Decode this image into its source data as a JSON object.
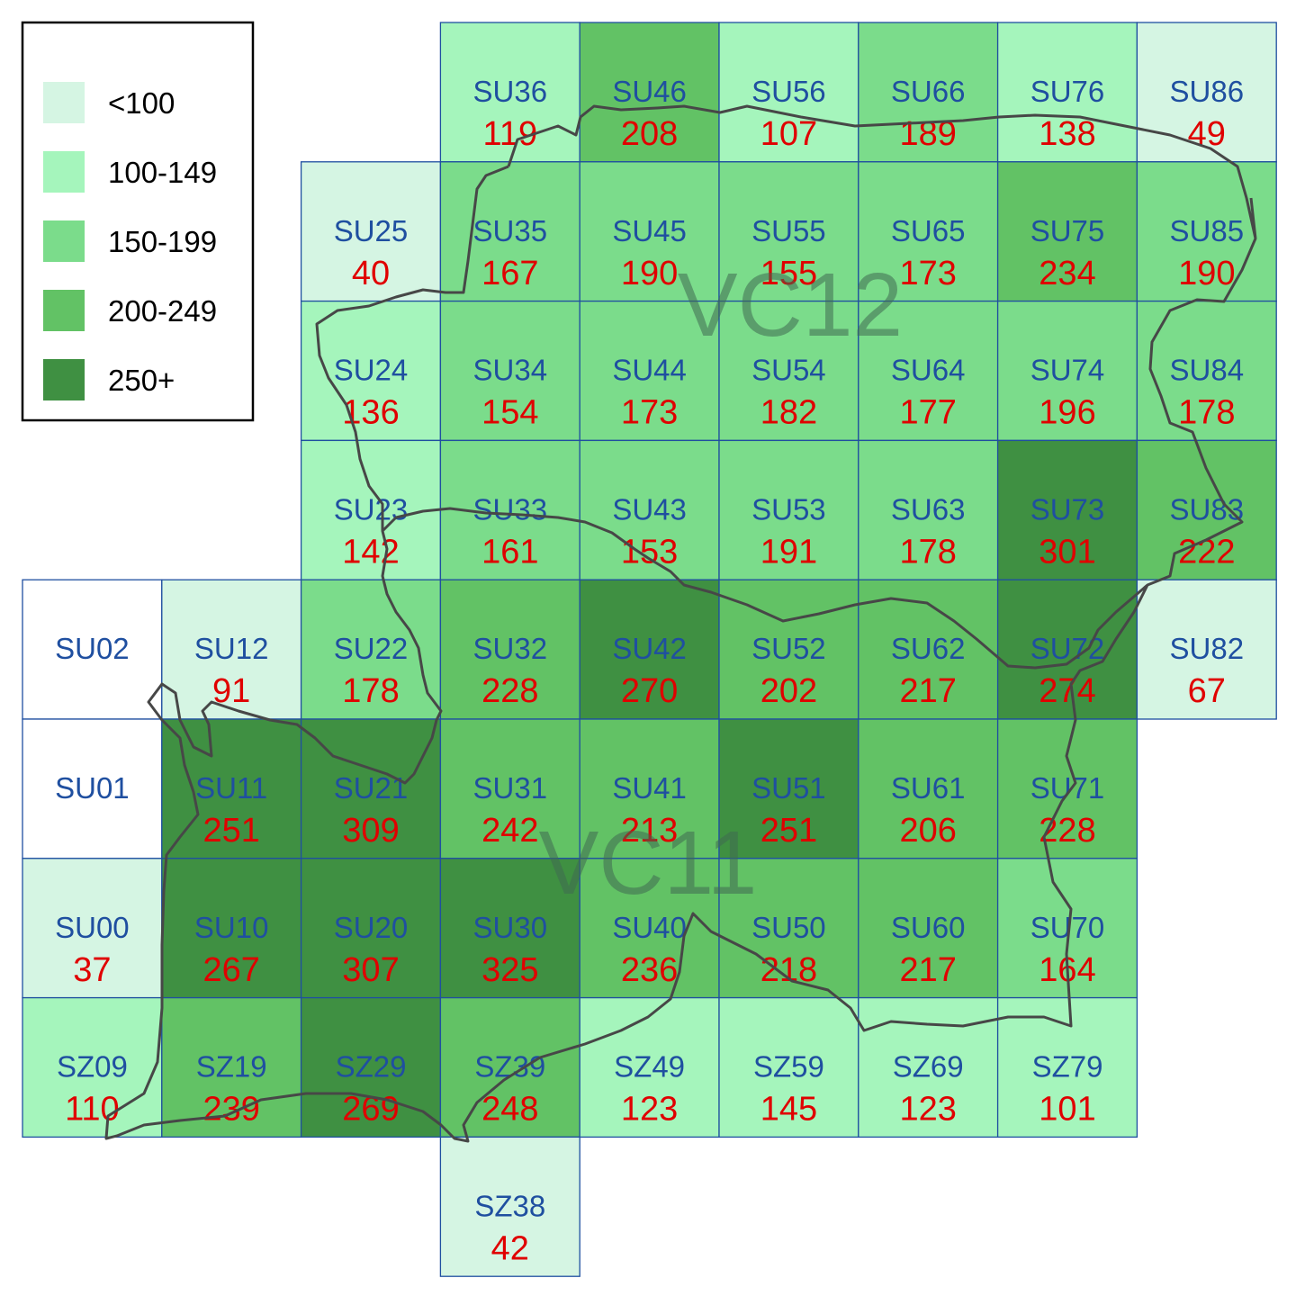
{
  "legend": {
    "items": [
      {
        "label": "<100",
        "color": "#d5f5e3"
      },
      {
        "label": "100-149",
        "color": "#a5f5bc"
      },
      {
        "label": "150-199",
        "color": "#7bdc8b"
      },
      {
        "label": "200-249",
        "color": "#62c265"
      },
      {
        "label": "250+",
        "color": "#3f9042"
      }
    ]
  },
  "regions": [
    {
      "id": "vc12",
      "label": "VC12"
    },
    {
      "id": "vc11",
      "label": "VC11"
    }
  ],
  "grid_cells": [
    {
      "code": "SU36",
      "count": "119"
    },
    {
      "code": "SU46",
      "count": "208"
    },
    {
      "code": "SU56",
      "count": "107"
    },
    {
      "code": "SU66",
      "count": "189"
    },
    {
      "code": "SU76",
      "count": "138"
    },
    {
      "code": "SU86",
      "count": "49"
    },
    {
      "code": "SU25",
      "count": "40"
    },
    {
      "code": "SU35",
      "count": "167"
    },
    {
      "code": "SU45",
      "count": "190"
    },
    {
      "code": "SU55",
      "count": "155"
    },
    {
      "code": "SU65",
      "count": "173"
    },
    {
      "code": "SU75",
      "count": "234"
    },
    {
      "code": "SU85",
      "count": "190"
    },
    {
      "code": "SU24",
      "count": "136"
    },
    {
      "code": "SU34",
      "count": "154"
    },
    {
      "code": "SU44",
      "count": "173"
    },
    {
      "code": "SU54",
      "count": "182"
    },
    {
      "code": "SU64",
      "count": "177"
    },
    {
      "code": "SU74",
      "count": "196"
    },
    {
      "code": "SU84",
      "count": "178"
    },
    {
      "code": "SU23",
      "count": "142"
    },
    {
      "code": "SU33",
      "count": "161"
    },
    {
      "code": "SU43",
      "count": "153"
    },
    {
      "code": "SU53",
      "count": "191"
    },
    {
      "code": "SU63",
      "count": "178"
    },
    {
      "code": "SU73",
      "count": "301"
    },
    {
      "code": "SU83",
      "count": "222"
    },
    {
      "code": "SU02",
      "count": ""
    },
    {
      "code": "SU12",
      "count": "91"
    },
    {
      "code": "SU22",
      "count": "178"
    },
    {
      "code": "SU32",
      "count": "228"
    },
    {
      "code": "SU42",
      "count": "270"
    },
    {
      "code": "SU52",
      "count": "202"
    },
    {
      "code": "SU62",
      "count": "217"
    },
    {
      "code": "SU72",
      "count": "274"
    },
    {
      "code": "SU82",
      "count": "67"
    },
    {
      "code": "SU01",
      "count": ""
    },
    {
      "code": "SU11",
      "count": "251"
    },
    {
      "code": "SU21",
      "count": "309"
    },
    {
      "code": "SU31",
      "count": "242"
    },
    {
      "code": "SU41",
      "count": "213"
    },
    {
      "code": "SU51",
      "count": "251"
    },
    {
      "code": "SU61",
      "count": "206"
    },
    {
      "code": "SU71",
      "count": "228"
    },
    {
      "code": "SU00",
      "count": "37"
    },
    {
      "code": "SU10",
      "count": "267"
    },
    {
      "code": "SU20",
      "count": "307"
    },
    {
      "code": "SU30",
      "count": "325"
    },
    {
      "code": "SU40",
      "count": "236"
    },
    {
      "code": "SU50",
      "count": "218"
    },
    {
      "code": "SU60",
      "count": "217"
    },
    {
      "code": "SU70",
      "count": "164"
    },
    {
      "code": "SZ09",
      "count": "110"
    },
    {
      "code": "SZ19",
      "count": "239"
    },
    {
      "code": "SZ29",
      "count": "269"
    },
    {
      "code": "SZ39",
      "count": "248"
    },
    {
      "code": "SZ49",
      "count": "123"
    },
    {
      "code": "SZ59",
      "count": "145"
    },
    {
      "code": "SZ69",
      "count": "123"
    },
    {
      "code": "SZ79",
      "count": "101"
    },
    {
      "code": "SZ38",
      "count": "42"
    }
  ]
}
